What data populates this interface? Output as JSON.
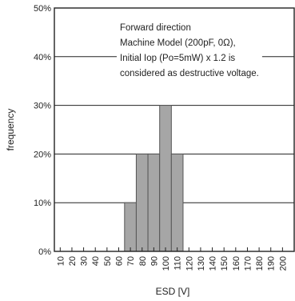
{
  "chart_data": {
    "type": "bar",
    "title": "",
    "xlabel": "ESD [V]",
    "ylabel": "frequency",
    "categories": [
      "10",
      "20",
      "30",
      "40",
      "50",
      "60",
      "70",
      "80",
      "90",
      "100",
      "110",
      "120",
      "130",
      "140",
      "150",
      "160",
      "170",
      "180",
      "190",
      "200"
    ],
    "values": [
      0,
      0,
      0,
      0,
      0,
      0,
      10,
      20,
      20,
      30,
      20,
      0,
      0,
      0,
      0,
      0,
      0,
      0,
      0,
      0
    ],
    "ylim": [
      0,
      50
    ],
    "yticks": [
      0,
      10,
      20,
      30,
      40,
      50
    ],
    "ytick_labels": [
      "0%",
      "10%",
      "20%",
      "30%",
      "40%",
      "50%"
    ],
    "grid": "horizontal",
    "annotation": [
      "Forward direction",
      "Machine Model (200pF, 0Ω),",
      "Initial Iop (Po=5mW) x 1.2 is",
      "considered as destructive voltage."
    ],
    "colors": {
      "bar": "#a6a6a6",
      "bar_edge": "#555555",
      "axis": "#222222",
      "grid": "#222222"
    }
  }
}
